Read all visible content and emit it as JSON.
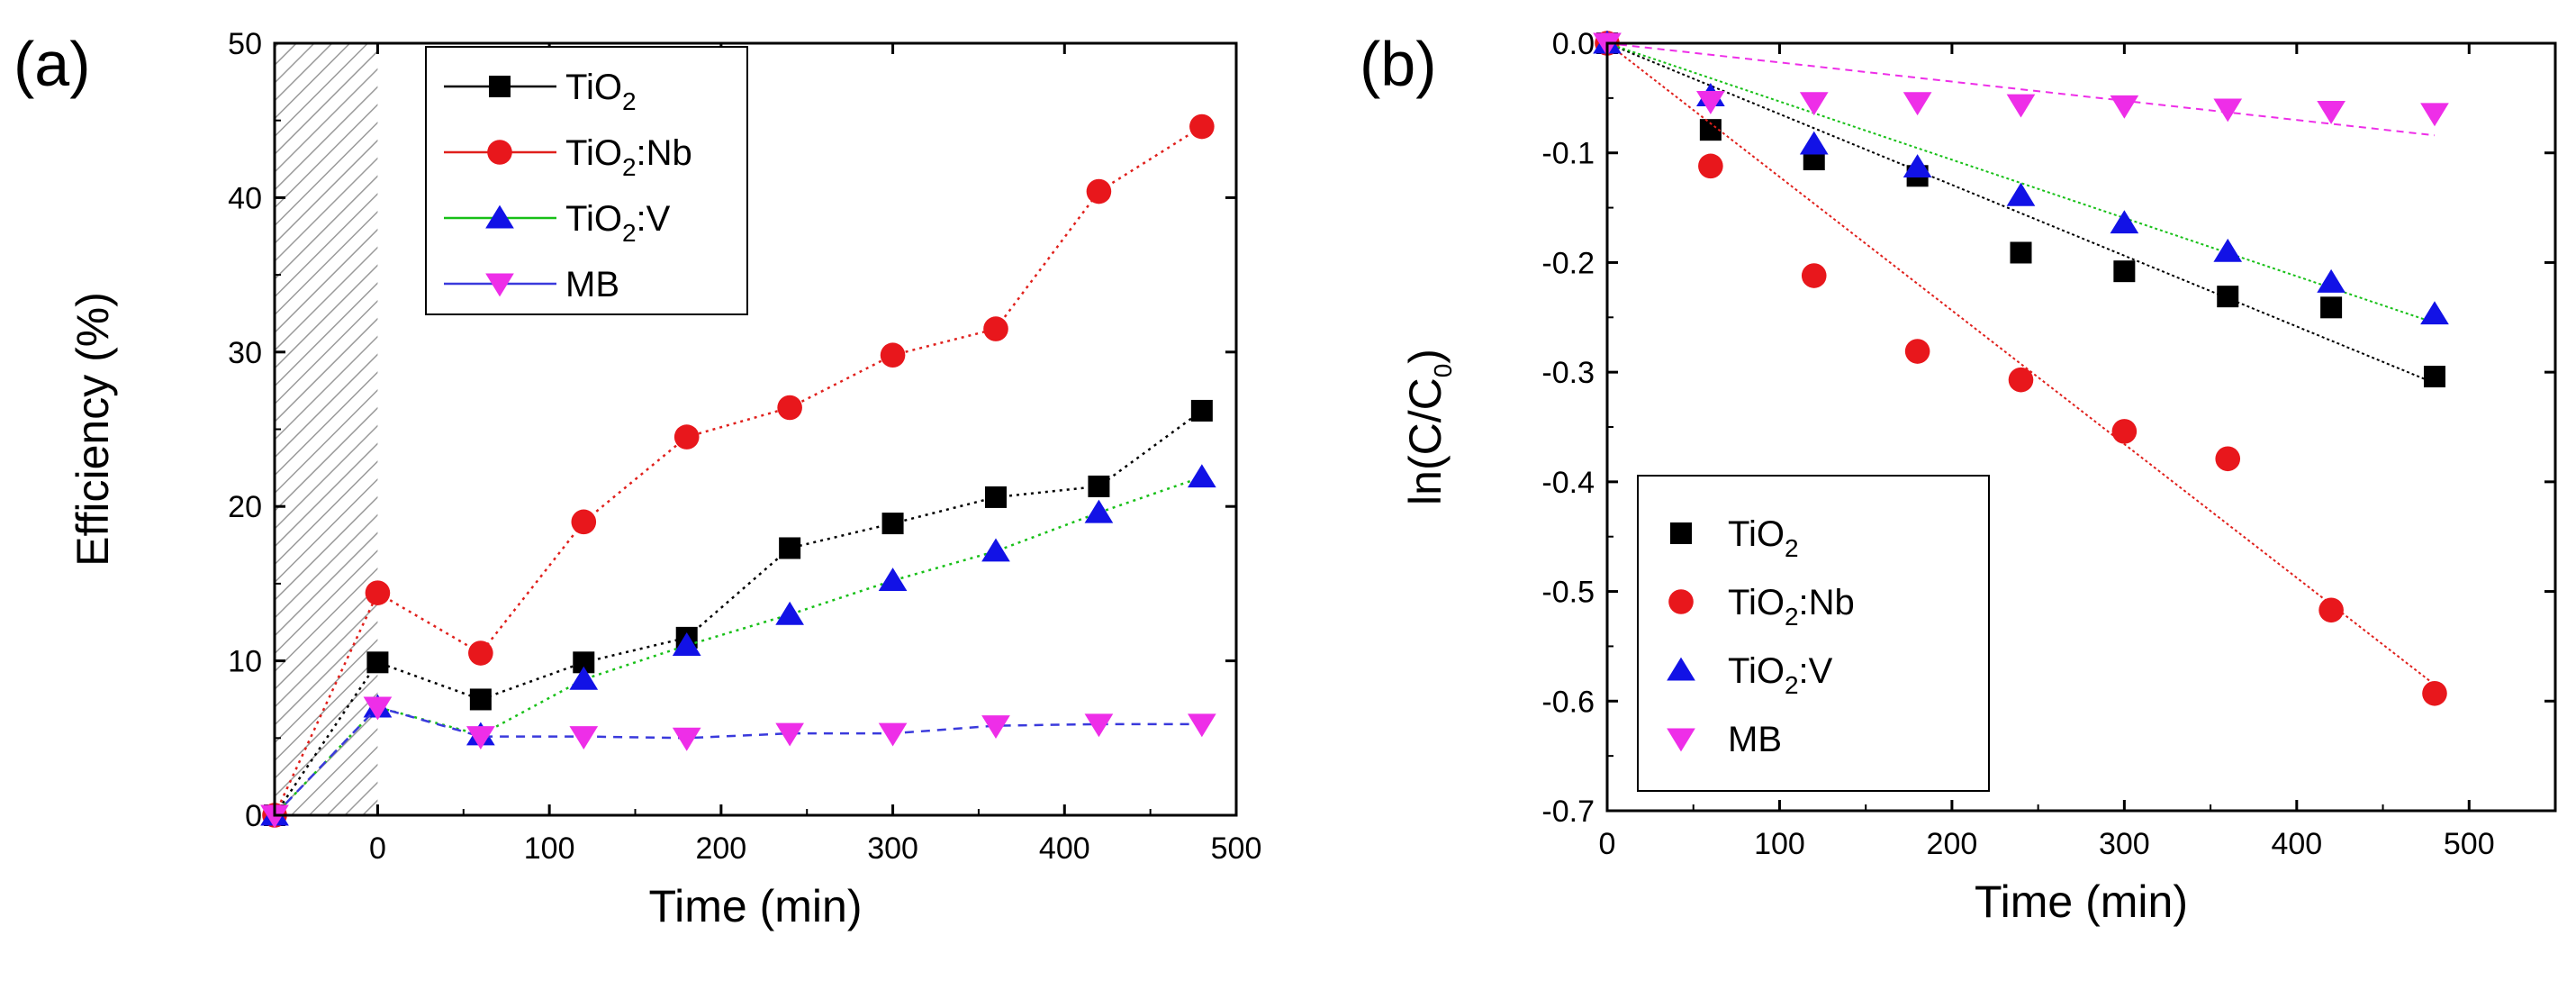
{
  "colors": {
    "TiO2": "#000000",
    "TiO2:Nb": "#e8171c",
    "TiO2:V": "#1212e6",
    "MB": "#ee2ee8",
    "line_TiO2": "#000000",
    "line_TiO2:Nb": "#e0201c",
    "line_TiO2:V": "#18c018",
    "line_MB": "#3a3adc"
  },
  "chart_data": [
    {
      "type": "line",
      "panel_label": "(a)",
      "xlabel": "Time (min)",
      "ylabel": "Efficiency (%)",
      "xlim": [
        -60,
        500
      ],
      "ylim": [
        0,
        50
      ],
      "xticks": [
        0,
        100,
        200,
        300,
        400,
        500
      ],
      "yticks": [
        0,
        10,
        20,
        30,
        40,
        50
      ],
      "xtick_labels": [
        "0",
        "100",
        "200",
        "300",
        "400",
        "500"
      ],
      "ytick_labels": [
        "0",
        "10",
        "20",
        "30",
        "40",
        "50"
      ],
      "shaded_region": [
        -60,
        0
      ],
      "legend_position": "top-left",
      "series": [
        {
          "name": "TiO2",
          "display": [
            "TiO",
            "2",
            ""
          ],
          "marker": "square",
          "line": "dotted",
          "color_key": "TiO2",
          "line_color_key": "line_TiO2",
          "x": [
            -60,
            0,
            60,
            120,
            180,
            240,
            300,
            360,
            420,
            480
          ],
          "y": [
            0,
            9.9,
            7.5,
            9.9,
            11.5,
            17.3,
            18.9,
            20.6,
            21.3,
            26.2
          ]
        },
        {
          "name": "TiO2:Nb",
          "display": [
            "TiO",
            "2",
            ":Nb"
          ],
          "marker": "circle",
          "line": "dotted",
          "color_key": "TiO2:Nb",
          "line_color_key": "line_TiO2:Nb",
          "x": [
            -60,
            0,
            60,
            120,
            180,
            240,
            300,
            360,
            420,
            480
          ],
          "y": [
            0,
            14.4,
            10.5,
            19.0,
            24.5,
            26.4,
            29.8,
            31.5,
            40.4,
            44.6
          ]
        },
        {
          "name": "TiO2:V",
          "display": [
            "TiO",
            "2",
            ":V"
          ],
          "marker": "triangle-up",
          "line": "dotted",
          "color_key": "TiO2:V",
          "line_color_key": "line_TiO2:V",
          "x": [
            -60,
            0,
            60,
            120,
            180,
            240,
            300,
            360,
            420,
            480
          ],
          "y": [
            0,
            7.0,
            5.2,
            8.8,
            11.0,
            13.0,
            15.2,
            17.1,
            19.6,
            21.9
          ]
        },
        {
          "name": "MB",
          "display": [
            "MB",
            "",
            ""
          ],
          "marker": "triangle-down",
          "line": "dashed",
          "color_key": "MB",
          "line_color_key": "line_MB",
          "x": [
            -60,
            0,
            60,
            120,
            180,
            240,
            300,
            360,
            420,
            480
          ],
          "y": [
            0,
            7.0,
            5.1,
            5.1,
            5.0,
            5.3,
            5.3,
            5.8,
            5.9,
            5.9
          ]
        }
      ]
    },
    {
      "type": "scatter",
      "panel_label": "(b)",
      "xlabel": "Time (min)",
      "ylabel": "ln(C/C0)",
      "ylabel_parts": [
        "ln(C/C",
        "0",
        ")"
      ],
      "xlim": [
        0,
        550
      ],
      "ylim": [
        -0.7,
        0.0
      ],
      "xticks": [
        0,
        100,
        200,
        300,
        400,
        500
      ],
      "yticks": [
        0.0,
        -0.1,
        -0.2,
        -0.3,
        -0.4,
        -0.5,
        -0.6,
        -0.7
      ],
      "xtick_labels": [
        "0",
        "100",
        "200",
        "300",
        "400",
        "500"
      ],
      "ytick_labels": [
        "0.0",
        "-0.1",
        "-0.2",
        "-0.3",
        "-0.4",
        "-0.5",
        "-0.6",
        "-0.7"
      ],
      "legend_position": "bottom-left",
      "series": [
        {
          "name": "TiO2",
          "display": [
            "TiO",
            "2",
            ""
          ],
          "marker": "square",
          "color_key": "TiO2",
          "line_color_key": "line_TiO2",
          "x": [
            0,
            60,
            120,
            180,
            240,
            300,
            360,
            420,
            480
          ],
          "y": [
            0,
            -0.079,
            -0.106,
            -0.121,
            -0.191,
            -0.208,
            -0.231,
            -0.241,
            -0.304
          ],
          "fit": {
            "x": [
              0,
              480
            ],
            "y": [
              0,
              -0.31
            ]
          }
        },
        {
          "name": "TiO2:Nb",
          "display": [
            "TiO",
            "2",
            ":Nb"
          ],
          "marker": "circle",
          "color_key": "TiO2:Nb",
          "line_color_key": "line_TiO2:Nb",
          "x": [
            0,
            60,
            120,
            180,
            240,
            300,
            360,
            420,
            480
          ],
          "y": [
            0,
            -0.112,
            -0.212,
            -0.281,
            -0.307,
            -0.354,
            -0.379,
            -0.517,
            -0.593
          ],
          "fit": {
            "x": [
              0,
              480
            ],
            "y": [
              0,
              -0.585
            ]
          }
        },
        {
          "name": "TiO2:V",
          "display": [
            "TiO",
            "2",
            ":V"
          ],
          "marker": "triangle-up",
          "color_key": "TiO2:V",
          "line_color_key": "line_TiO2:V",
          "x": [
            0,
            60,
            120,
            180,
            240,
            300,
            360,
            420,
            480
          ],
          "y": [
            0,
            -0.048,
            -0.092,
            -0.113,
            -0.139,
            -0.164,
            -0.19,
            -0.218,
            -0.247
          ],
          "fit": {
            "x": [
              0,
              480
            ],
            "y": [
              0,
              -0.255
            ]
          }
        },
        {
          "name": "MB",
          "display": [
            "MB",
            "",
            ""
          ],
          "marker": "triangle-down",
          "color_key": "MB",
          "line_color_key": "MB",
          "x": [
            0,
            60,
            120,
            180,
            240,
            300,
            360,
            420,
            480
          ],
          "y": [
            0,
            -0.053,
            -0.054,
            -0.054,
            -0.056,
            -0.057,
            -0.06,
            -0.062,
            -0.064
          ],
          "fit": {
            "x": [
              0,
              480
            ],
            "y": [
              0,
              -0.084
            ]
          }
        }
      ]
    }
  ]
}
